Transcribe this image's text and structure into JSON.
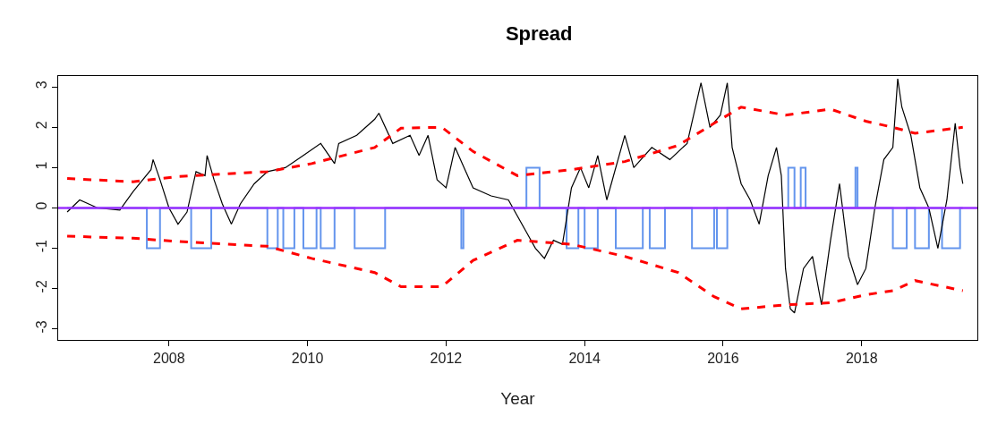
{
  "chart_data": {
    "type": "line",
    "title": "Spread",
    "xlabel": "Year",
    "xlim": [
      2006.4,
      2019.67
    ],
    "xticks": [
      2008,
      2010,
      2012,
      2014,
      2016,
      2018
    ],
    "ylim": [
      -3.27,
      3.27
    ],
    "yticks": [
      -3,
      -2,
      -1,
      0,
      1,
      2,
      3
    ],
    "marker": "none",
    "series": [
      {
        "type": "step",
        "color": "#6495ed",
        "line_style": "solid",
        "x": [
          2006.53,
          2007.68,
          2007.87,
          2008.32,
          2008.61,
          2009.42,
          2009.57,
          2009.65,
          2009.81,
          2009.94,
          2010.13,
          2010.19,
          2010.39,
          2010.68,
          2011.12,
          2012.22,
          2012.25,
          2013.16,
          2013.35,
          2013.74,
          2013.91,
          2014.0,
          2014.19,
          2014.45,
          2014.84,
          2014.94,
          2015.16,
          2015.55,
          2015.87,
          2015.91,
          2016.06,
          2016.94,
          2017.03,
          2017.12,
          2017.19,
          2017.91,
          2017.94,
          2018.45,
          2018.65,
          2018.77,
          2018.97,
          2019.16,
          2019.42,
          2019.46
        ],
        "values": [
          0,
          -1,
          0,
          -1,
          0,
          -1,
          0,
          -1,
          0,
          -1,
          0,
          -1,
          0,
          -1,
          0,
          -1,
          0,
          1,
          0,
          -1,
          0,
          -1,
          0,
          -1,
          0,
          -1,
          0,
          -1,
          0,
          -1,
          0,
          1,
          0,
          1,
          0,
          1,
          0,
          -1,
          0,
          -1,
          0,
          -1,
          0,
          0
        ]
      },
      {
        "color": "#000000",
        "line_style": "solid",
        "x": [
          2006.53,
          2006.71,
          2006.97,
          2007.29,
          2007.48,
          2007.74,
          2007.77,
          2007.87,
          2008.0,
          2008.13,
          2008.26,
          2008.39,
          2008.52,
          2008.55,
          2008.65,
          2008.77,
          2008.9,
          2009.03,
          2009.23,
          2009.42,
          2009.68,
          2009.94,
          2010.19,
          2010.39,
          2010.45,
          2010.71,
          2010.97,
          2011.03,
          2011.23,
          2011.48,
          2011.61,
          2011.74,
          2011.87,
          2012.0,
          2012.13,
          2012.26,
          2012.39,
          2012.65,
          2012.9,
          2013.16,
          2013.29,
          2013.42,
          2013.55,
          2013.68,
          2013.81,
          2013.94,
          2014.06,
          2014.19,
          2014.32,
          2014.58,
          2014.71,
          2014.97,
          2015.23,
          2015.48,
          2015.68,
          2015.81,
          2015.96,
          2016.06,
          2016.13,
          2016.26,
          2016.39,
          2016.52,
          2016.65,
          2016.77,
          2016.84,
          2016.9,
          2016.97,
          2017.03,
          2017.16,
          2017.29,
          2017.42,
          2017.55,
          2017.68,
          2017.81,
          2017.94,
          2018.06,
          2018.19,
          2018.32,
          2018.45,
          2018.52,
          2018.58,
          2018.71,
          2018.84,
          2018.97,
          2019.1,
          2019.23,
          2019.35,
          2019.42,
          2019.46
        ],
        "values": [
          -0.1,
          0.2,
          0.0,
          -0.05,
          0.4,
          0.95,
          1.2,
          0.7,
          0.0,
          -0.4,
          -0.1,
          0.9,
          0.8,
          1.3,
          0.7,
          0.1,
          -0.4,
          0.1,
          0.6,
          0.9,
          1.0,
          1.3,
          1.6,
          1.1,
          1.6,
          1.8,
          2.2,
          2.35,
          1.6,
          1.8,
          1.3,
          1.8,
          0.7,
          0.5,
          1.5,
          1.0,
          0.5,
          0.3,
          0.2,
          -0.6,
          -1.0,
          -1.25,
          -0.8,
          -0.9,
          0.5,
          1.0,
          0.5,
          1.3,
          0.2,
          1.8,
          1.0,
          1.5,
          1.2,
          1.6,
          3.1,
          2.0,
          2.3,
          3.1,
          1.5,
          0.6,
          0.2,
          -0.4,
          0.8,
          1.5,
          0.8,
          -1.5,
          -2.5,
          -2.6,
          -1.5,
          -1.2,
          -2.4,
          -0.8,
          0.6,
          -1.2,
          -1.9,
          -1.5,
          0.0,
          1.2,
          1.5,
          3.2,
          2.5,
          1.8,
          0.5,
          0.0,
          -1.0,
          0.2,
          2.1,
          1.0,
          0.6
        ]
      },
      {
        "color": "#ff0000",
        "line_style": "dashed",
        "x": [
          2006.53,
          2007.48,
          2008.13,
          2009.42,
          2010.06,
          2010.97,
          2011.35,
          2011.94,
          2012.39,
          2013.03,
          2013.81,
          2014.58,
          2015.35,
          2015.87,
          2016.26,
          2016.9,
          2017.55,
          2018.06,
          2018.45,
          2018.77,
          2019.46
        ],
        "values": [
          0.73,
          0.65,
          0.78,
          0.9,
          1.1,
          1.5,
          1.98,
          2.0,
          1.4,
          0.8,
          0.95,
          1.15,
          1.55,
          2.1,
          2.5,
          2.3,
          2.45,
          2.15,
          2.0,
          1.85,
          2.0
        ]
      },
      {
        "color": "#ff0000",
        "line_style": "dashed",
        "x": [
          2006.53,
          2007.48,
          2008.13,
          2009.42,
          2010.06,
          2010.97,
          2011.35,
          2011.94,
          2012.39,
          2013.03,
          2013.81,
          2014.58,
          2015.35,
          2015.87,
          2016.26,
          2016.9,
          2017.55,
          2018.06,
          2018.45,
          2018.77,
          2019.46
        ],
        "values": [
          -0.7,
          -0.75,
          -0.83,
          -0.95,
          -1.25,
          -1.6,
          -1.95,
          -1.95,
          -1.3,
          -0.8,
          -0.9,
          -1.2,
          -1.6,
          -2.2,
          -2.5,
          -2.4,
          -2.35,
          -2.15,
          -2.05,
          -1.8,
          -2.05
        ]
      }
    ],
    "ref_lines": [
      {
        "axis": "y",
        "value": 0,
        "color": "#9b30ff",
        "line_style": "solid"
      }
    ]
  }
}
